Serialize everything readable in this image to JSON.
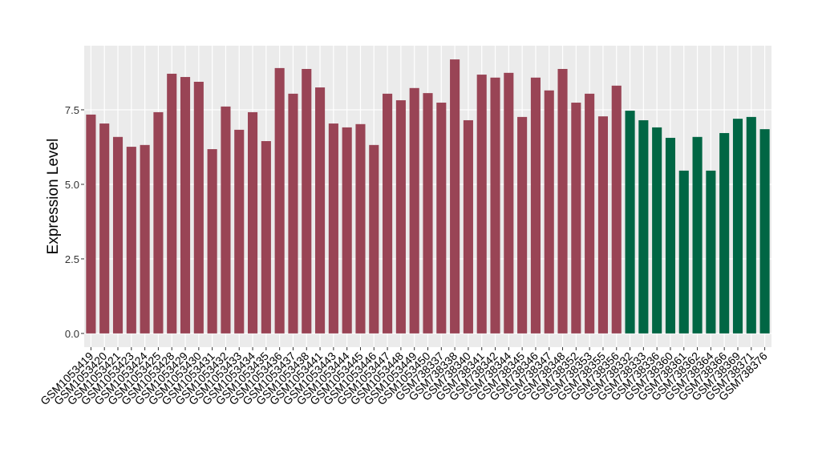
{
  "chart_data": {
    "type": "bar",
    "y_label": "Expression Level",
    "categories": [
      "GSM1053419",
      "GSM1053420",
      "GSM1053421",
      "GSM1053423",
      "GSM1053424",
      "GSM1053425",
      "GSM1053428",
      "GSM1053429",
      "GSM1053430",
      "GSM1053431",
      "GSM1053432",
      "GSM1053433",
      "GSM1053434",
      "GSM1053435",
      "GSM1053436",
      "GSM1053437",
      "GSM1053438",
      "GSM1053441",
      "GSM1053443",
      "GSM1053444",
      "GSM1053445",
      "GSM1053446",
      "GSM1053447",
      "GSM1053448",
      "GSM1053449",
      "GSM1053450",
      "GSM738337",
      "GSM738338",
      "GSM738340",
      "GSM738341",
      "GSM738342",
      "GSM738344",
      "GSM738345",
      "GSM738346",
      "GSM738347",
      "GSM738348",
      "GSM738352",
      "GSM738353",
      "GSM738355",
      "GSM738356",
      "GSM738332",
      "GSM738333",
      "GSM738336",
      "GSM738360",
      "GSM738361",
      "GSM738362",
      "GSM738364",
      "GSM738366",
      "GSM738369",
      "GSM738371",
      "GSM738376"
    ],
    "values": [
      7.34,
      7.04,
      6.59,
      6.26,
      6.32,
      7.42,
      8.71,
      8.6,
      8.44,
      6.18,
      7.61,
      6.83,
      7.42,
      6.45,
      8.9,
      8.04,
      8.87,
      8.25,
      7.04,
      6.91,
      7.02,
      6.32,
      8.04,
      7.82,
      8.23,
      8.06,
      7.74,
      9.19,
      7.15,
      8.68,
      8.58,
      8.74,
      7.26,
      8.58,
      8.15,
      8.87,
      7.74,
      8.04,
      7.28,
      8.31,
      7.47,
      7.15,
      6.91,
      6.56,
      5.46,
      6.59,
      5.46,
      6.72,
      7.2,
      7.26,
      6.85
    ],
    "colors": [
      "#994455",
      "#994455",
      "#994455",
      "#994455",
      "#994455",
      "#994455",
      "#994455",
      "#994455",
      "#994455",
      "#994455",
      "#994455",
      "#994455",
      "#994455",
      "#994455",
      "#994455",
      "#994455",
      "#994455",
      "#994455",
      "#994455",
      "#994455",
      "#994455",
      "#994455",
      "#994455",
      "#994455",
      "#994455",
      "#994455",
      "#994455",
      "#994455",
      "#994455",
      "#994455",
      "#994455",
      "#994455",
      "#994455",
      "#994455",
      "#994455",
      "#994455",
      "#994455",
      "#994455",
      "#994455",
      "#994455",
      "#006644",
      "#006644",
      "#006644",
      "#006644",
      "#006644",
      "#006644",
      "#006644",
      "#006644",
      "#006644",
      "#006644",
      "#006644"
    ],
    "ylim": [
      -0.46,
      9.65
    ],
    "yticks": [
      {
        "value": 0,
        "label": "0.0"
      },
      2.5,
      {
        "value": 5,
        "label": "5.0"
      },
      7.5
    ],
    "grid": true
  }
}
